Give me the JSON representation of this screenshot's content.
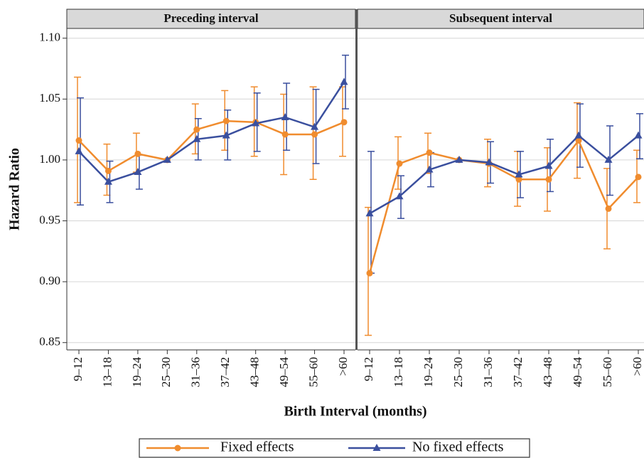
{
  "chart_data": [
    {
      "type": "line",
      "title": "Preceding interval",
      "ylabel": "Hazard Ratio",
      "xlabel": "Birth Interval (months)",
      "categories": [
        "9–12",
        "13–18",
        "19–24",
        "25–30",
        "31–36",
        "37–42",
        "43–48",
        "49–54",
        "55–60",
        ">60"
      ],
      "series": [
        {
          "name": "Fixed effects",
          "color": "#f08c2e",
          "marker": "circle",
          "values": [
            1.016,
            0.991,
            1.005,
            1.0,
            1.025,
            1.032,
            1.031,
            1.021,
            1.021,
            1.031
          ],
          "lower": [
            0.965,
            0.971,
            0.99,
            null,
            1.005,
            1.008,
            1.003,
            0.988,
            0.984,
            1.003
          ],
          "upper": [
            1.068,
            1.013,
            1.022,
            null,
            1.046,
            1.057,
            1.06,
            1.054,
            1.06,
            1.06
          ]
        },
        {
          "name": "No fixed effects",
          "color": "#3a4f9e",
          "marker": "triangle",
          "values": [
            1.007,
            0.982,
            0.99,
            1.0,
            1.017,
            1.02,
            1.03,
            1.035,
            1.027,
            1.064
          ],
          "lower": [
            0.963,
            0.965,
            0.976,
            null,
            1.0,
            1.0,
            1.007,
            1.008,
            0.997,
            1.042
          ],
          "upper": [
            1.051,
            0.999,
            1.004,
            null,
            1.034,
            1.041,
            1.055,
            1.063,
            1.058,
            1.086
          ]
        }
      ],
      "ylim": [
        0.844,
        1.108
      ],
      "yticks": [
        0.85,
        {
          "value": 0.9,
          "label": "0.90"
        },
        0.95,
        {
          "value": 1,
          "label": "1.00"
        },
        1.05,
        {
          "value": 1.1,
          "label": "1.10"
        }
      ],
      "grid": true
    },
    {
      "type": "line",
      "title": "Subsequent interval",
      "categories": [
        "9–12",
        "13–18",
        "19–24",
        "25–30",
        "31–36",
        "37–42",
        "43–48",
        "49–54",
        "55–60",
        ">60"
      ],
      "series": [
        {
          "name": "Fixed effects",
          "color": "#f08c2e",
          "marker": "circle",
          "values": [
            0.907,
            0.997,
            1.006,
            1.0,
            0.997,
            0.984,
            0.984,
            1.016,
            0.96,
            0.986
          ],
          "lower": [
            0.856,
            0.976,
            0.989,
            null,
            0.978,
            0.962,
            0.958,
            0.985,
            0.927,
            0.965
          ],
          "upper": [
            0.961,
            1.019,
            1.022,
            null,
            1.017,
            1.007,
            1.01,
            1.047,
            0.993,
            1.008
          ]
        },
        {
          "name": "No fixed effects",
          "color": "#3a4f9e",
          "marker": "triangle",
          "values": [
            0.956,
            0.97,
            0.992,
            1.0,
            0.998,
            0.988,
            0.995,
            1.02,
            1.0,
            1.02
          ],
          "lower": [
            0.907,
            0.952,
            0.978,
            null,
            0.981,
            0.969,
            0.974,
            0.994,
            0.971,
            1.001
          ],
          "upper": [
            1.007,
            0.987,
            1.006,
            null,
            1.015,
            1.007,
            1.017,
            1.046,
            1.028,
            1.038
          ]
        }
      ],
      "ylim": [
        0.844,
        1.108
      ],
      "yticks": [
        0.85,
        {
          "value": 0.9,
          "label": "0.90"
        },
        0.95,
        {
          "value": 1,
          "label": "1.00"
        },
        1.05,
        {
          "value": 1.1,
          "label": "1.10"
        }
      ],
      "grid": true
    }
  ]
}
